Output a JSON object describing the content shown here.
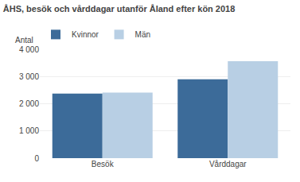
{
  "chart_data": {
    "type": "bar",
    "title": "ÅHS, besök och vårddagar utanför Åland efter kön 2018",
    "ylabel": "Antal",
    "categories": [
      "Besök",
      "Vårddagar"
    ],
    "series": [
      {
        "name": "Kvinnor",
        "color": "#3c6b99",
        "values": [
          2370,
          2900
        ]
      },
      {
        "name": "Män",
        "color": "#b8cfe4",
        "values": [
          2410,
          3560
        ]
      }
    ],
    "ylim": [
      0,
      4000
    ],
    "yticks": [
      0,
      {
        "value": 1000,
        "label": "1 000"
      },
      {
        "value": 2000,
        "label": "2 000"
      },
      {
        "value": 3000,
        "label": "3 000"
      },
      {
        "value": 4000,
        "label": "4 000"
      }
    ],
    "grid": true,
    "legend": "upper left"
  }
}
